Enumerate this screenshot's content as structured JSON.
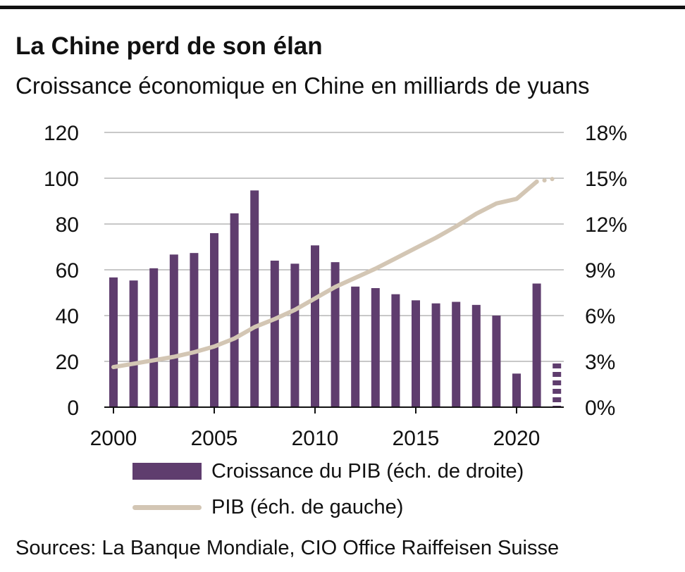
{
  "title": "La Chine perd de son élan",
  "subtitle": "Croissance économique en Chine en milliards de yuans",
  "source": "Sources: La Banque Mondiale, CIO Office Raiffeisen Suisse",
  "colors": {
    "bar": "#5f3d6e",
    "line": "#d3c6b4",
    "grid": "#a8a8a8",
    "axis": "#111111"
  },
  "chart_data": {
    "type": "bar+line",
    "x": [
      2000,
      2001,
      2002,
      2003,
      2004,
      2005,
      2006,
      2007,
      2008,
      2009,
      2010,
      2011,
      2012,
      2013,
      2014,
      2015,
      2016,
      2017,
      2018,
      2019,
      2020,
      2021,
      2022
    ],
    "xticks": [
      2000,
      2005,
      2010,
      2015,
      2020
    ],
    "xtick_labels": [
      "2000",
      "2005",
      "2010",
      "2015",
      "2020"
    ],
    "left_axis": {
      "ylim": [
        0,
        120
      ],
      "ticks": [
        0,
        20,
        40,
        60,
        80,
        100,
        120
      ],
      "tick_labels": [
        "0",
        "20",
        "40",
        "60",
        "80",
        "100",
        "120"
      ]
    },
    "right_axis": {
      "ylim": [
        0,
        18
      ],
      "ticks": [
        0,
        3,
        6,
        9,
        12,
        15,
        18
      ],
      "tick_labels": [
        "0%",
        "3%",
        "6%",
        "9%",
        "12%",
        "15%",
        "18%"
      ]
    },
    "grid": true,
    "series": [
      {
        "name": "Croissance du PIB (éch. de droite)",
        "type": "bar",
        "axis": "right",
        "values": [
          8.5,
          8.3,
          9.1,
          10.0,
          10.1,
          11.4,
          12.7,
          14.2,
          9.6,
          9.4,
          10.6,
          9.5,
          7.9,
          7.8,
          7.4,
          7.0,
          6.8,
          6.9,
          6.7,
          6.0,
          2.2,
          8.1,
          3.0
        ],
        "estimated_from_index": 22
      },
      {
        "name": "PIB (éch. de gauche)",
        "type": "line",
        "axis": "left",
        "values": [
          17.5,
          19,
          20.5,
          22,
          24,
          26.5,
          30,
          35,
          38.5,
          42.5,
          47.5,
          52.5,
          56.5,
          60.5,
          65,
          69.5,
          74,
          79,
          84.5,
          89,
          91,
          98.5,
          100
        ],
        "estimated_from_index": 22
      }
    ]
  }
}
